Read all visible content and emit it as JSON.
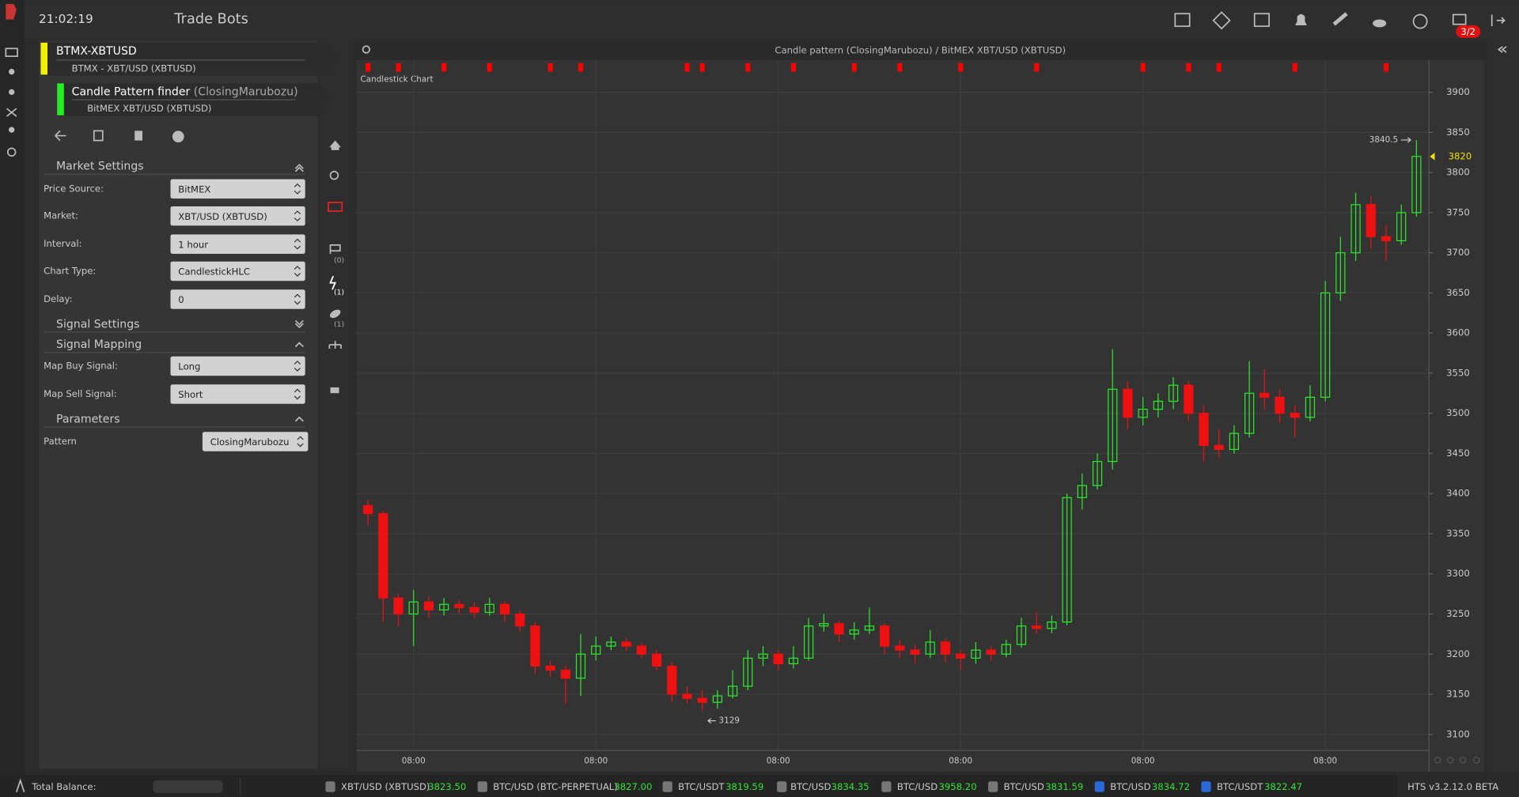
{
  "header": {
    "time": "21:02:19",
    "title": "Trade Bots",
    "badge": "3/2"
  },
  "bot": {
    "name": "BTMX-XBTUSD",
    "market": "BTMX - XBT/USD (XBTUSD)"
  },
  "strategy": {
    "name": "Candle Pattern finder",
    "pattern": "(ClosingMarubozu)",
    "market": "BitMEX XBT/USD (XBTUSD)"
  },
  "settings": {
    "market_settings": {
      "title": "Market Settings",
      "fields": [
        {
          "label": "Price Source:",
          "value": "BitMEX"
        },
        {
          "label": "Market:",
          "value": "XBT/USD (XBTUSD)"
        },
        {
          "label": "Interval:",
          "value": "1 hour"
        },
        {
          "label": "Chart Type:",
          "value": "CandlestickHLC"
        },
        {
          "label": "Delay:",
          "value": 0
        }
      ]
    },
    "signal_settings": {
      "title": "Signal Settings"
    },
    "signal_mapping": {
      "title": "Signal Mapping",
      "fields": [
        {
          "label": "Map Buy Signal:",
          "value": "Long"
        },
        {
          "label": "Map Sell Signal:",
          "value": "Short"
        }
      ]
    },
    "parameters": {
      "title": "Parameters",
      "fields": [
        {
          "label": "Pattern",
          "value": "ClosingMarubozu"
        }
      ]
    }
  },
  "side_tabs": [
    "(0)",
    "(1)",
    "(1)"
  ],
  "chart_data": {
    "type": "candlestick",
    "title": "Candle pattern (ClosingMarubozu) / BitMEX XBT/USD (XBTUSD)",
    "subtitle": "Candlestick Chart",
    "categories": [
      null,
      null,
      null,
      "08:00",
      null,
      null,
      null,
      null,
      null,
      null,
      null,
      null,
      null,
      null,
      null,
      "08:00",
      null,
      null,
      null,
      null,
      null,
      null,
      null,
      null,
      null,
      null,
      null,
      "08:00",
      null,
      null,
      null,
      null,
      null,
      null,
      null,
      null,
      null,
      null,
      null,
      "08:00",
      null,
      null,
      null,
      null,
      null,
      null,
      null,
      null,
      null,
      null,
      null,
      "08:00",
      null,
      null,
      null,
      null,
      null,
      null,
      null,
      null,
      null,
      null,
      null,
      "08:00",
      null,
      null,
      null,
      null,
      null,
      null
    ],
    "open": [
      3385,
      3375,
      3270,
      3250,
      3265,
      3255,
      3262,
      3258,
      3252,
      3262,
      3250,
      3235,
      3185,
      3180,
      3170,
      3200,
      3210,
      3215,
      3210,
      3200,
      3185,
      3150,
      3145,
      3140,
      3148,
      3160,
      3195,
      3200,
      3188,
      3195,
      3235,
      3238,
      3225,
      3230,
      3235,
      3210,
      3205,
      3200,
      3215,
      3200,
      3195,
      3205,
      3200,
      3212,
      3235,
      3232,
      3240,
      3395,
      3410,
      3440,
      3530,
      3495,
      3505,
      3515,
      3535,
      3500,
      3460,
      3455,
      3475,
      3525,
      3520,
      3500,
      3495,
      3520,
      3650,
      3700,
      3760,
      3720,
      3715,
      3750
    ],
    "high": [
      3392,
      3378,
      3275,
      3280,
      3272,
      3270,
      3268,
      3265,
      3270,
      3266,
      3255,
      3240,
      3192,
      3186,
      3225,
      3222,
      3222,
      3220,
      3214,
      3205,
      3190,
      3160,
      3155,
      3155,
      3180,
      3205,
      3210,
      3205,
      3210,
      3245,
      3250,
      3242,
      3240,
      3258,
      3238,
      3218,
      3212,
      3230,
      3220,
      3205,
      3215,
      3210,
      3218,
      3245,
      3252,
      3248,
      3400,
      3425,
      3450,
      3580,
      3540,
      3520,
      3525,
      3545,
      3540,
      3510,
      3480,
      3485,
      3565,
      3555,
      3530,
      3510,
      3535,
      3665,
      3720,
      3775,
      3770,
      3735,
      3760,
      3840.5
    ],
    "low": [
      3360,
      3240,
      3235,
      3210,
      3245,
      3248,
      3250,
      3245,
      3248,
      3240,
      3228,
      3175,
      3172,
      3138,
      3148,
      3192,
      3205,
      3204,
      3195,
      3180,
      3140,
      3138,
      3129,
      3132,
      3145,
      3155,
      3185,
      3180,
      3182,
      3192,
      3228,
      3215,
      3218,
      3225,
      3200,
      3195,
      3188,
      3195,
      3190,
      3180,
      3188,
      3192,
      3196,
      3208,
      3225,
      3226,
      3236,
      3380,
      3405,
      3430,
      3480,
      3485,
      3495,
      3505,
      3490,
      3440,
      3445,
      3450,
      3470,
      3505,
      3488,
      3470,
      3490,
      3515,
      3640,
      3690,
      3705,
      3690,
      3710,
      3745
    ],
    "close": [
      3375,
      3270,
      3250,
      3265,
      3255,
      3262,
      3258,
      3252,
      3262,
      3250,
      3235,
      3185,
      3180,
      3170,
      3200,
      3210,
      3215,
      3210,
      3200,
      3185,
      3150,
      3145,
      3140,
      3148,
      3160,
      3195,
      3200,
      3188,
      3195,
      3235,
      3238,
      3225,
      3230,
      3235,
      3210,
      3205,
      3200,
      3215,
      3200,
      3195,
      3205,
      3200,
      3212,
      3235,
      3232,
      3240,
      3395,
      3410,
      3440,
      3530,
      3495,
      3505,
      3515,
      3535,
      3500,
      3460,
      3455,
      3475,
      3525,
      3520,
      3500,
      3495,
      3520,
      3650,
      3700,
      3760,
      3720,
      3715,
      3750,
      3820
    ],
    "up_color": "#2ee82e",
    "down_color": "#ee1111",
    "signals": {
      "indices": [
        0,
        2,
        5,
        8,
        12,
        14,
        21,
        22,
        25,
        28,
        32,
        35,
        39,
        44,
        51,
        54,
        56,
        61,
        67
      ],
      "color": "#ff0000"
    },
    "ylim": [
      3080,
      3940
    ],
    "yticks": [
      3100,
      3150,
      3200,
      3250,
      3300,
      3350,
      3400,
      3450,
      3500,
      3550,
      3600,
      3650,
      3700,
      3750,
      3800,
      3850,
      3900
    ],
    "grid": true
  },
  "footer": {
    "balance_label": "Total Balance:",
    "tickers": [
      {
        "pair": "XBT/USD (XBTUSD)",
        "price": "3823.50"
      },
      {
        "pair": "BTC/USD (BTC-PERPETUAL)",
        "price": "3827.00"
      },
      {
        "pair": "BTC/USDT",
        "price": "3819.59"
      },
      {
        "pair": "BTC/USD",
        "price": "3834.35"
      },
      {
        "pair": "BTC/USD",
        "price": "3958.20"
      },
      {
        "pair": "BTC/USD",
        "price": "3831.59"
      },
      {
        "pair": "BTC/USD",
        "price": "3834.72"
      },
      {
        "pair": "BTC/USDT",
        "price": "3822.47"
      }
    ],
    "version": "HTS v3.2.12.0 BETA"
  }
}
